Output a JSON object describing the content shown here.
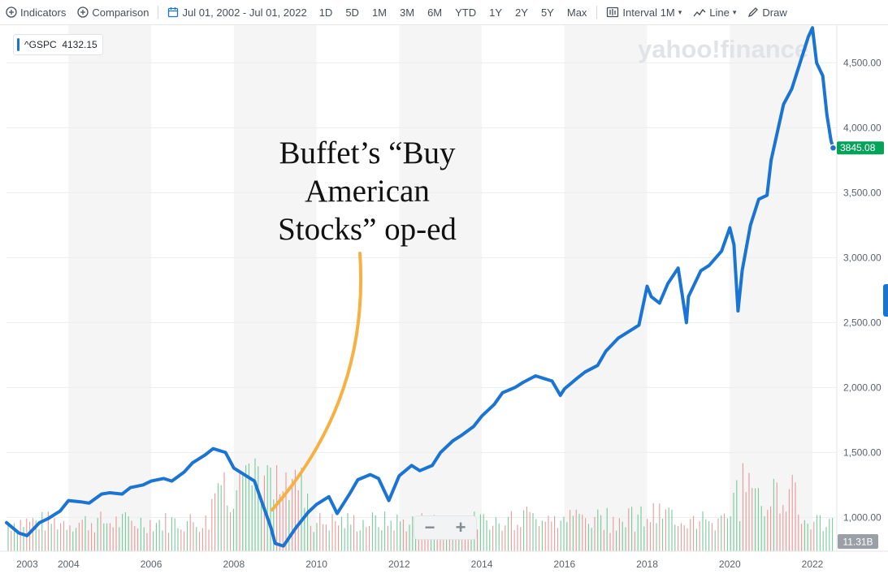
{
  "toolbar": {
    "indicators_label": "Indicators",
    "comparison_label": "Comparison",
    "date_range_label": "Jul 01, 2002 - Jul 01, 2022",
    "ranges": [
      "1D",
      "5D",
      "1M",
      "3M",
      "6M",
      "YTD",
      "1Y",
      "2Y",
      "5Y",
      "Max"
    ],
    "interval_label": "Interval",
    "interval_value": "1M",
    "chart_type_label": "Line",
    "draw_label": "Draw"
  },
  "legend": {
    "symbol": "^GSPC",
    "value": "4132.15"
  },
  "watermark": "yahoo!finance",
  "annotation": {
    "lines": [
      "Buffet’s “Buy",
      "American",
      "Stocks” op-ed"
    ]
  },
  "zoom": {
    "out": "−",
    "in": "+"
  },
  "colors": {
    "line": "#1a74d4",
    "annotation": "#f6b142",
    "price_tag": "#05a35a",
    "vol_up": "#21a55a",
    "vol_down": "#d9534f"
  },
  "chart_data": {
    "type": "line",
    "series": [
      {
        "x": [
          2002.5,
          2002.8,
          2003.0,
          2003.3,
          2003.5,
          2003.8,
          2004.0,
          2004.3,
          2004.5,
          2004.8,
          2005.0,
          2005.3,
          2005.5,
          2005.8,
          2006.0,
          2006.3,
          2006.5,
          2006.8,
          2007.0,
          2007.3,
          2007.5,
          2007.8,
          2008.0,
          2008.3,
          2008.5,
          2008.7,
          2008.9,
          2009.0,
          2009.2,
          2009.5,
          2009.8,
          2010.0,
          2010.3,
          2010.5,
          2010.8,
          2011.0,
          2011.3,
          2011.5,
          2011.75,
          2012.0,
          2012.3,
          2012.5,
          2012.8,
          2013.0,
          2013.3,
          2013.5,
          2013.8,
          2014.0,
          2014.3,
          2014.5,
          2014.8,
          2015.0,
          2015.3,
          2015.5,
          2015.7,
          2015.9,
          2016.0,
          2016.3,
          2016.5,
          2016.8,
          2017.0,
          2017.3,
          2017.5,
          2017.8,
          2018.0,
          2018.1,
          2018.3,
          2018.5,
          2018.75,
          2018.95,
          2019.0,
          2019.3,
          2019.5,
          2019.8,
          2020.0,
          2020.1,
          2020.2,
          2020.3,
          2020.5,
          2020.7,
          2020.9,
          2021.0,
          2021.3,
          2021.5,
          2021.75,
          2021.9,
          2022.0,
          2022.1,
          2022.25,
          2022.35,
          2022.45,
          2022.5
        ],
        "values": [
          960,
          880,
          860,
          960,
          990,
          1050,
          1130,
          1120,
          1110,
          1180,
          1190,
          1180,
          1230,
          1250,
          1280,
          1300,
          1280,
          1350,
          1420,
          1480,
          1530,
          1500,
          1380,
          1320,
          1280,
          1100,
          920,
          800,
          780,
          920,
          1040,
          1100,
          1160,
          1030,
          1180,
          1290,
          1330,
          1300,
          1130,
          1320,
          1400,
          1360,
          1400,
          1500,
          1590,
          1630,
          1700,
          1780,
          1870,
          1960,
          2000,
          2040,
          2090,
          2070,
          2050,
          1940,
          1990,
          2070,
          2120,
          2170,
          2280,
          2380,
          2420,
          2480,
          2780,
          2700,
          2650,
          2800,
          2920,
          2500,
          2700,
          2900,
          2940,
          3050,
          3230,
          3100,
          2590,
          2900,
          3250,
          3450,
          3480,
          3750,
          4180,
          4300,
          4550,
          4700,
          4770,
          4500,
          4400,
          4100,
          3900,
          3845
        ]
      }
    ],
    "x_ticks": [
      2003,
      2004,
      2006,
      2008,
      2010,
      2012,
      2014,
      2016,
      2018,
      2020,
      2022
    ],
    "y_ticks": [
      1000,
      1500,
      2000,
      2500,
      3000,
      3500,
      4000,
      4500
    ],
    "y_tick_labels": [
      "1,000.00",
      "1,500.00",
      "2,000.00",
      "2,500.00",
      "3,000.00",
      "3,500.00",
      "4,000.00",
      "4,500.00"
    ],
    "xlim": [
      2002.5,
      2022.55
    ],
    "ylim": [
      740,
      4790
    ],
    "last_price_label": "3845.08",
    "volume_label": "11.31B",
    "grid": true
  }
}
